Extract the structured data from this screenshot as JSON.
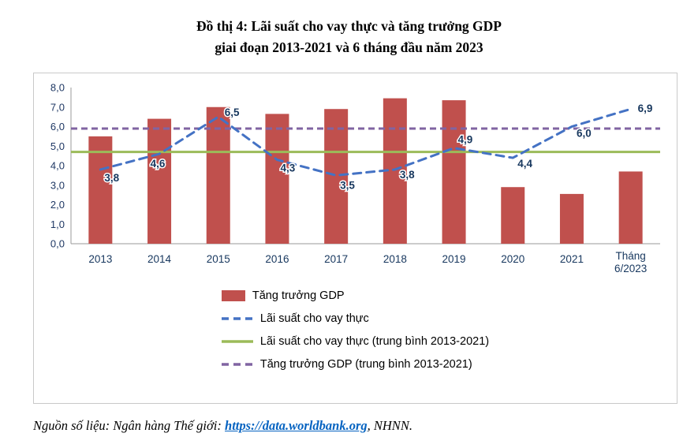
{
  "chart_data": {
    "type": "bar",
    "title_lines": [
      "Đồ thị 4: Lãi suất cho vay thực và tăng trưởng GDP",
      "giai đoạn 2013-2021 và 6 tháng đầu năm 2023"
    ],
    "categories": [
      "2013",
      "2014",
      "2015",
      "2016",
      "2017",
      "2018",
      "2019",
      "2020",
      "2021",
      "Tháng 6/2023"
    ],
    "series": [
      {
        "name": "Tăng trưởng GDP",
        "type": "bar",
        "color": "#C0504D",
        "values": [
          5.5,
          6.4,
          7.0,
          6.65,
          6.9,
          7.45,
          7.35,
          2.9,
          2.55,
          3.7
        ]
      },
      {
        "name": "Lãi suất cho vay thực",
        "type": "line-dashed",
        "color": "#4472C4",
        "values": [
          3.8,
          4.6,
          6.5,
          4.3,
          3.5,
          3.8,
          4.9,
          4.4,
          6.0,
          6.9
        ],
        "labels": [
          "3,8",
          "4,6",
          "6,5",
          "4,3",
          "3,5",
          "3,8",
          "4,9",
          "4,4",
          "6,0",
          "6,9"
        ]
      },
      {
        "name": "Lãi suất cho vay thực (trung bình 2013-2021)",
        "type": "line",
        "color": "#9BBB59",
        "value": 4.7
      },
      {
        "name": "Tăng trưởng GDP (trung bình 2013-2021)",
        "type": "line-dashed",
        "color": "#8064A2",
        "value": 5.9
      }
    ],
    "ylim": [
      0,
      8
    ],
    "ytick_labels": [
      "0,0",
      "1,0",
      "2,0",
      "3,0",
      "4,0",
      "5,0",
      "6,0",
      "7,0",
      "8,0"
    ],
    "grid": false,
    "legend_position": "bottom-inside"
  },
  "source": {
    "prefix": "Nguồn số liệu: Ngân hàng Thế giới: ",
    "link": "https://data.worldbank.org",
    "suffix": ", NHNN."
  }
}
